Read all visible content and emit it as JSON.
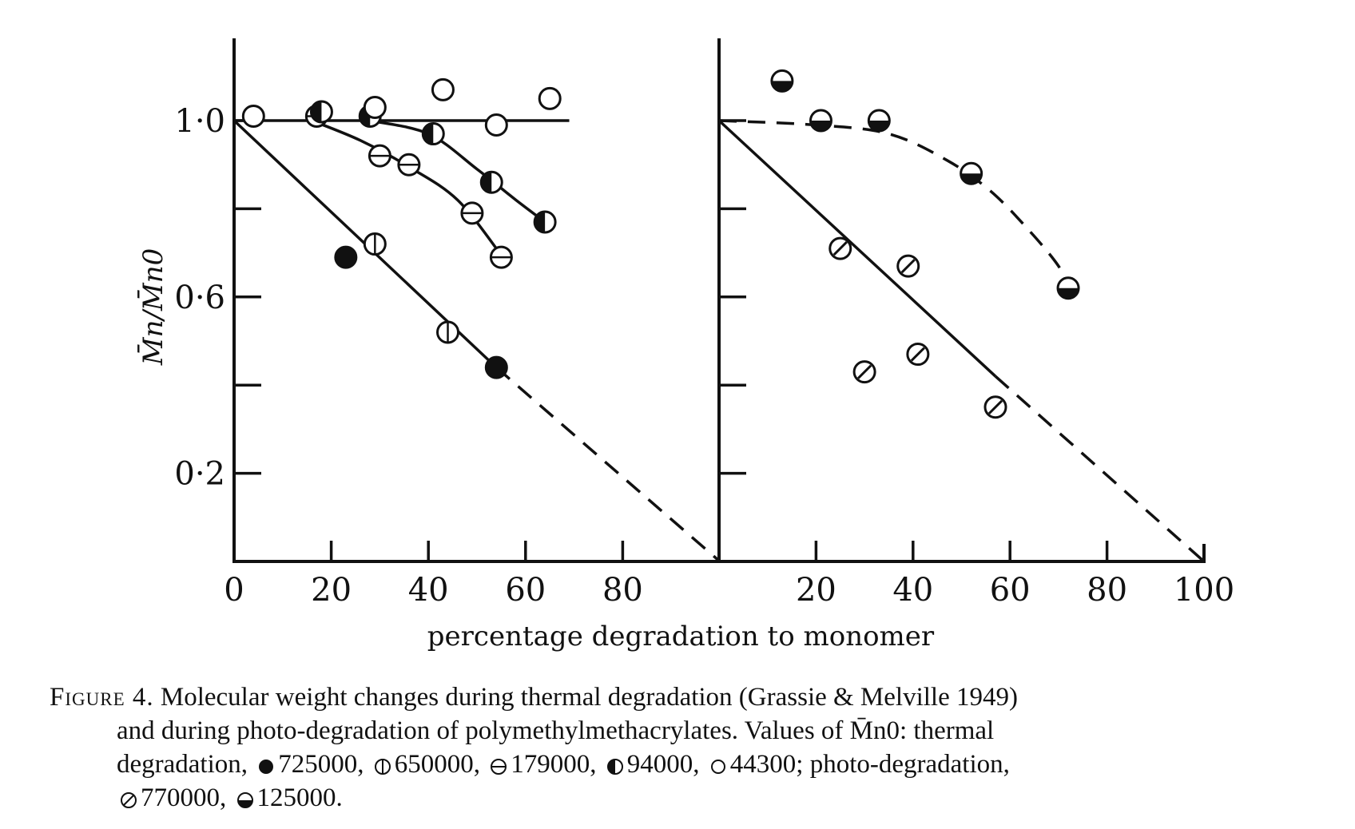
{
  "chart_data": {
    "type": "scatter",
    "panels": [
      {
        "id": "thermal",
        "xlim": [
          0,
          100
        ],
        "ylim": [
          0,
          1.1
        ],
        "series": [
          {
            "symbol": "filled",
            "points": [
              [
                23,
                0.69
              ],
              [
                54,
                0.44
              ]
            ]
          },
          {
            "symbol": "vertical-bar",
            "points": [
              [
                29,
                0.72
              ],
              [
                44,
                0.52
              ]
            ]
          },
          {
            "symbol": "horizontal-bar",
            "points": [
              [
                17,
                1.01
              ],
              [
                30,
                0.92
              ],
              [
                36,
                0.9
              ],
              [
                49,
                0.79
              ],
              [
                55,
                0.69
              ]
            ]
          },
          {
            "symbol": "left-half-filled",
            "points": [
              [
                18,
                1.02
              ],
              [
                28,
                1.01
              ],
              [
                41,
                0.97
              ],
              [
                53,
                0.86
              ],
              [
                64,
                0.77
              ]
            ]
          },
          {
            "symbol": "open",
            "points": [
              [
                4,
                1.01
              ],
              [
                29,
                1.03
              ],
              [
                43,
                1.07
              ],
              [
                54,
                0.99
              ],
              [
                65,
                1.05
              ]
            ]
          }
        ],
        "lines": [
          {
            "style": "solid",
            "points": [
              [
                0,
                1.0
              ],
              [
                54,
                0.44
              ]
            ]
          },
          {
            "style": "dashed",
            "points": [
              [
                54,
                0.44
              ],
              [
                100,
                0.0
              ]
            ]
          },
          {
            "style": "solid",
            "points": [
              [
                0,
                1.0
              ],
              [
                69,
                1.0
              ]
            ]
          },
          {
            "style": "solid-curve",
            "points": [
              [
                16,
                1.0
              ],
              [
                26,
                0.955
              ],
              [
                36,
                0.895
              ],
              [
                46,
                0.82
              ],
              [
                55,
                0.695
              ]
            ]
          },
          {
            "style": "solid-curve",
            "points": [
              [
                28,
                1.0
              ],
              [
                40,
                0.97
              ],
              [
                50,
                0.89
              ],
              [
                58,
                0.82
              ],
              [
                64,
                0.77
              ]
            ]
          }
        ]
      },
      {
        "id": "photo",
        "xlim": [
          0,
          100
        ],
        "ylim": [
          0,
          1.1
        ],
        "series": [
          {
            "symbol": "slashed",
            "points": [
              [
                25,
                0.71
              ],
              [
                39,
                0.67
              ],
              [
                30,
                0.43
              ],
              [
                41,
                0.47
              ],
              [
                57,
                0.35
              ]
            ]
          },
          {
            "symbol": "bottom-half-filled",
            "points": [
              [
                13,
                1.09
              ],
              [
                21,
                1.0
              ],
              [
                33,
                1.0
              ],
              [
                52,
                0.88
              ],
              [
                72,
                0.62
              ]
            ]
          }
        ],
        "lines": [
          {
            "style": "solid",
            "points": [
              [
                0,
                1.0
              ],
              [
                57,
                0.42
              ]
            ]
          },
          {
            "style": "dashed",
            "points": [
              [
                57,
                0.42
              ],
              [
                100,
                0.0
              ]
            ]
          },
          {
            "style": "dashed-curve",
            "points": [
              [
                0,
                1.0
              ],
              [
                20,
                0.99
              ],
              [
                35,
                0.97
              ],
              [
                47,
                0.91
              ],
              [
                56,
                0.84
              ],
              [
                64,
                0.75
              ],
              [
                70,
                0.67
              ],
              [
                72,
                0.62
              ]
            ]
          }
        ]
      }
    ],
    "y_ticks": [
      {
        "value": 0.2,
        "label": "0·2"
      },
      {
        "value": 0.6,
        "label": "0·6"
      },
      {
        "value": 1.0,
        "label": "1·0"
      }
    ],
    "y_minor_ticks": [
      0.4,
      0.8
    ],
    "x_labels_left": [
      "0",
      "20",
      "40",
      "60",
      "80"
    ],
    "x_labels_right": [
      "20",
      "40",
      "60",
      "80",
      "100"
    ],
    "ylabel": "M̄n/M̄n0",
    "xlabel": "percentage degradation to monomer"
  },
  "caption": {
    "fig_label": "Figure 4.",
    "line1": "Molecular weight changes during thermal degradation (Grassie & Melville 1949)",
    "line2": "and during photo-degradation of polymethylmethacrylates. Values of M̄n0: thermal",
    "line3_prefix": "degradation,",
    "v_filled": "725000,",
    "v_vbar": "650000,",
    "v_hbar": "179000,",
    "v_half": "94000,",
    "v_open": "44300; photo-degradation,",
    "v_slash": "770000,",
    "v_bottom": "125000."
  }
}
